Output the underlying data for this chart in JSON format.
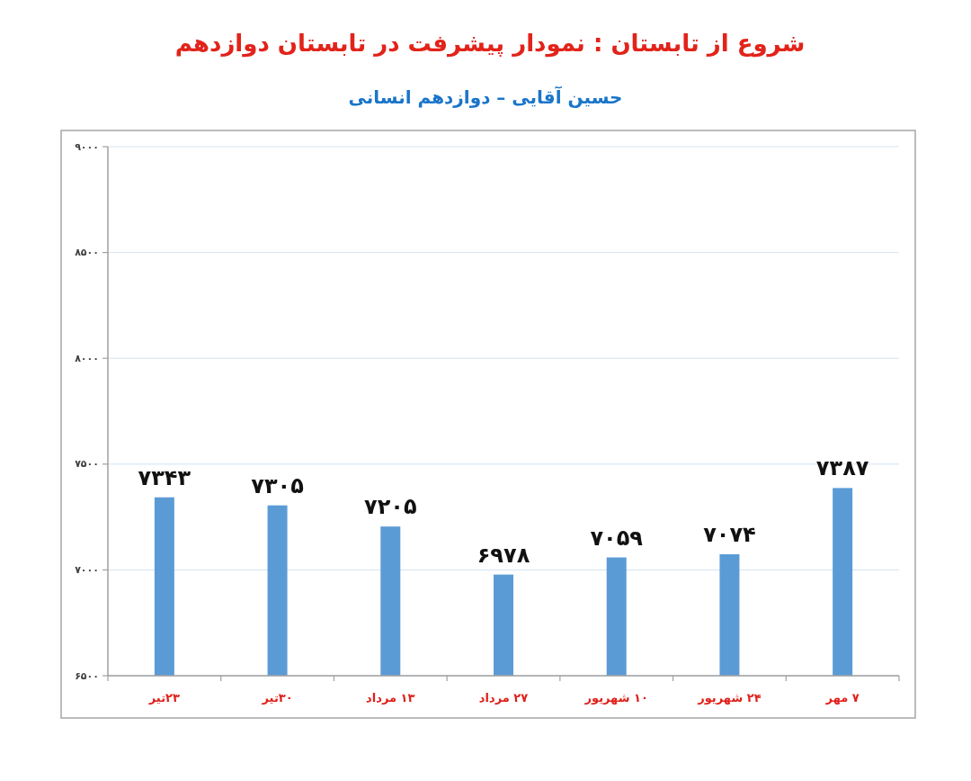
{
  "chart_data": {
    "type": "bar",
    "title": "شروع از تابستان : نمودار پیشرفت در تابستان دوازدهم",
    "subtitle": "حسین آقایی – دوازدهم انسانی",
    "categories": [
      "۲۳تیر",
      "۳۰تیر",
      "۱۳ مرداد",
      "۲۷ مرداد",
      "۱۰ شهریور",
      "۲۴ شهریور",
      "۷ مهر"
    ],
    "values": [
      7343,
      7305,
      7205,
      6978,
      7059,
      7074,
      7387
    ],
    "value_labels": [
      "۷۳۴۳",
      "۷۳۰۵",
      "۷۲۰۵",
      "۶۹۷۸",
      "۷۰۵۹",
      "۷۰۷۴",
      "۷۳۸۷"
    ],
    "color": "#5b9bd5",
    "ylim": [
      6500,
      9000
    ],
    "yticks": [
      {
        "value": 6500,
        "label": "۶۵۰۰"
      },
      {
        "value": 7000,
        "label": "۷۰۰۰"
      },
      {
        "value": 7500,
        "label": "۷۵۰۰"
      },
      {
        "value": 8000,
        "label": "۸۰۰۰"
      },
      {
        "value": 8500,
        "label": "۸۵۰۰"
      },
      {
        "value": 9000,
        "label": "۹۰۰۰"
      }
    ],
    "grid": "y"
  }
}
